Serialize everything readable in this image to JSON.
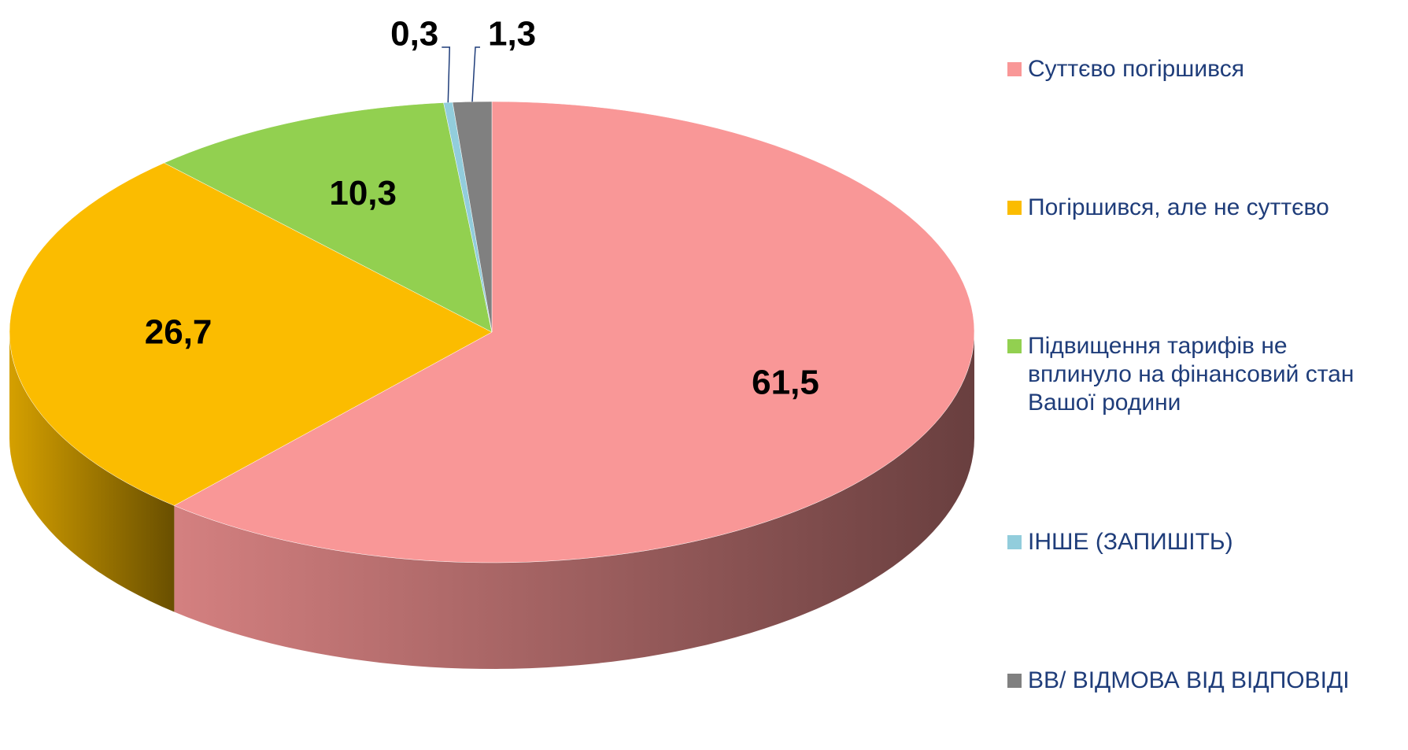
{
  "chart_data": {
    "type": "pie3d",
    "categories": [
      "Суттєво погіршився",
      "Погіршився, але не суттєво",
      "Підвищення тарифів не вплинуло на фінансовий стан Вашої родини",
      "ІНШЕ (ЗАПИШІТЬ)",
      "ВВ/ ВІДМОВА ВІД ВІДПОВІДІ"
    ],
    "values": [
      61.5,
      26.7,
      10.3,
      0.3,
      1.3
    ],
    "value_labels": [
      "61,5",
      "26,7",
      "10,3",
      "0,3",
      "1,3"
    ],
    "colors": [
      "#f99797",
      "#fbbc00",
      "#92d050",
      "#92cddc",
      "#808080"
    ],
    "legend": "right"
  }
}
